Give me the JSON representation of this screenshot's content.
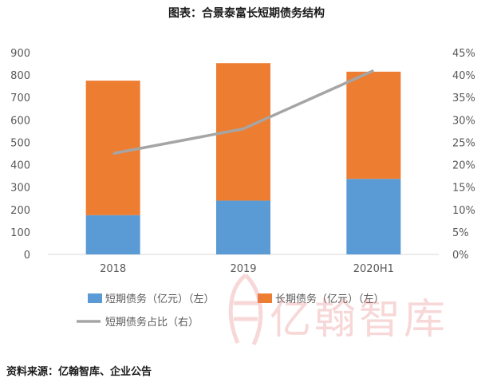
{
  "title": "图表：合景泰富长短期债务结构",
  "source": "资料来源：亿翰智库、企业公告",
  "watermark": {
    "text": "亿翰智库"
  },
  "chart_data": {
    "type": "bar",
    "stacked": true,
    "categories": [
      "2018",
      "2019",
      "2020H1"
    ],
    "series": [
      {
        "name": "短期债务（亿元）（左）",
        "type": "bar",
        "axis": "left",
        "color": "#5b9bd5",
        "values": [
          175,
          240,
          337
        ]
      },
      {
        "name": "长期债务（亿元）（左）",
        "type": "bar",
        "axis": "left",
        "color": "#ed7d31",
        "values": [
          600,
          613,
          478
        ]
      },
      {
        "name": "短期债务占比（右）",
        "type": "line",
        "axis": "right",
        "color": "#a5a5a5",
        "values": [
          0.225,
          0.28,
          0.41
        ]
      }
    ],
    "y_left": {
      "min": 0,
      "max": 900,
      "ticks": [
        "0",
        "100",
        "200",
        "300",
        "400",
        "500",
        "600",
        "700",
        "800",
        "900"
      ]
    },
    "y_right": {
      "min": 0,
      "max": 0.45,
      "ticks": [
        "0%",
        "5%",
        "10%",
        "15%",
        "20%",
        "25%",
        "30%",
        "35%",
        "40%",
        "45%"
      ]
    },
    "grid": false,
    "legend": "bottom"
  }
}
